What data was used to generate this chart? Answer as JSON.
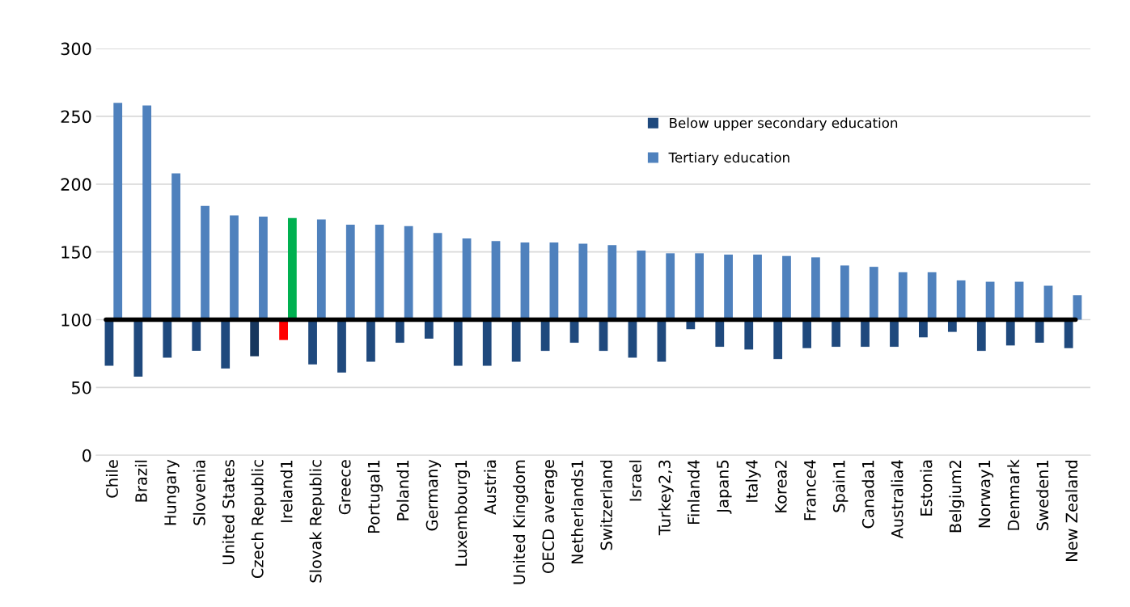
{
  "chart_data": {
    "type": "bar",
    "categories": [
      "Chile",
      "Brazil",
      "Hungary",
      "Slovenia",
      "United States",
      "Czech Republic",
      "Ireland1",
      "Slovak Republic",
      "Greece",
      "Portugal1",
      "Poland1",
      "Germany",
      "Luxembourg1",
      "Austria",
      "United Kingdom",
      "OECD average",
      "Netherlands1",
      "Switzerland",
      "Israel",
      "Turkey2,3",
      "Finland4",
      "Japan5",
      "Italy4",
      "Korea2",
      "France4",
      "Spain1",
      "Canada1",
      "Australia4",
      "Estonia",
      "Belgium2",
      "Norway1",
      "Denmark",
      "Sweden1",
      "New Zealand"
    ],
    "series": [
      {
        "name": "Below upper secondary education",
        "color": "#1f497d",
        "colors": [
          "#1f497d",
          "#1f497d",
          "#1f497d",
          "#1f497d",
          "#1f497d",
          "#17375e",
          "#ff0000",
          "#1f497d",
          "#1f497d",
          "#1f497d",
          "#1f497d",
          "#1f497d",
          "#1f497d",
          "#1f497d",
          "#1f497d",
          "#1f497d",
          "#1f497d",
          "#1f497d",
          "#1f497d",
          "#1f497d",
          "#1f497d",
          "#1f497d",
          "#1f497d",
          "#1f497d",
          "#1f497d",
          "#1f497d",
          "#1f497d",
          "#1f497d",
          "#1f497d",
          "#1f497d",
          "#1f497d",
          "#1f497d",
          "#1f497d",
          "#1f497d"
        ],
        "base": [
          100,
          100,
          100,
          100,
          100,
          100,
          100,
          100,
          100,
          100,
          100,
          100,
          100,
          100,
          100,
          100,
          100,
          100,
          100,
          100,
          100,
          100,
          100,
          100,
          100,
          100,
          100,
          100,
          100,
          100,
          100,
          100,
          100,
          100
        ],
        "values": [
          -34,
          -42,
          -28,
          -23,
          -36,
          -27,
          -15,
          -33,
          -39,
          -31,
          -17,
          -14,
          -34,
          -34,
          -31,
          -23,
          -17,
          -23,
          -28,
          -31,
          -7,
          -20,
          -22,
          -29,
          -21,
          -20,
          -20,
          -20,
          -13,
          -9,
          -23,
          -19,
          -17,
          -21
        ]
      },
      {
        "name": "Tertiary education",
        "color": "#4f81bd",
        "colors": [
          "#4f81bd",
          "#4f81bd",
          "#4f81bd",
          "#4f81bd",
          "#4f81bd",
          "#4f81bd",
          "#00b050",
          "#4f81bd",
          "#4f81bd",
          "#4f81bd",
          "#4f81bd",
          "#4f81bd",
          "#4f81bd",
          "#4f81bd",
          "#4f81bd",
          "#4f81bd",
          "#4f81bd",
          "#4f81bd",
          "#4f81bd",
          "#4f81bd",
          "#4f81bd",
          "#4f81bd",
          "#4f81bd",
          "#4f81bd",
          "#4f81bd",
          "#4f81bd",
          "#4f81bd",
          "#4f81bd",
          "#4f81bd",
          "#4f81bd",
          "#4f81bd",
          "#4f81bd",
          "#4f81bd",
          "#4f81bd"
        ],
        "base": [
          100,
          100,
          100,
          100,
          100,
          100,
          100,
          100,
          100,
          100,
          100,
          100,
          100,
          100,
          100,
          100,
          100,
          100,
          100,
          100,
          100,
          100,
          100,
          100,
          100,
          100,
          100,
          100,
          100,
          100,
          100,
          100,
          100,
          100
        ],
        "values": [
          160,
          158,
          108,
          84,
          77,
          76,
          75,
          74,
          70,
          70,
          69,
          64,
          60,
          58,
          57,
          57,
          56,
          55,
          51,
          49,
          49,
          48,
          48,
          47,
          46,
          40,
          39,
          35,
          35,
          29,
          28,
          28,
          25,
          18
        ]
      }
    ],
    "ylim": [
      0,
      300
    ],
    "yticks": [
      0,
      50,
      100,
      150,
      200,
      250,
      300
    ],
    "ref_lines": [
      {
        "axis": "y",
        "value": 100,
        "color": "#000000"
      }
    ],
    "grid": "y",
    "legend": "top"
  }
}
